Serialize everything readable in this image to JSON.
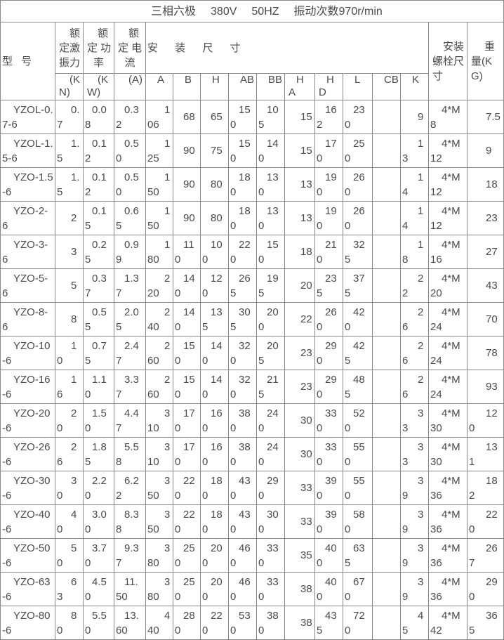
{
  "title": {
    "segments": [
      "三相六极",
      "380V",
      "50HZ",
      "振动次数970r/min"
    ]
  },
  "header": {
    "model_label": "型 号",
    "rated_force": {
      "lines": [
        "额",
        "定激",
        "振力"
      ]
    },
    "rated_power": {
      "lines": [
        "额",
        "定 功",
        "率"
      ]
    },
    "rated_current": {
      "lines": [
        "额",
        "定 电",
        "流"
      ]
    },
    "unit_kn": {
      "lines": [
        "(K",
        "N)"
      ]
    },
    "unit_kw": {
      "lines": [
        "(K",
        "W)"
      ]
    },
    "unit_a": {
      "lines": [
        "(A)"
      ]
    },
    "dims_title": "安 装 尺 寸",
    "dims": {
      "labels": [
        [
          "A"
        ],
        [
          "B"
        ],
        [
          "H"
        ],
        [
          "AB"
        ],
        [
          "BB"
        ],
        [
          "H",
          "A"
        ],
        [
          "H",
          "D"
        ],
        [
          "L"
        ],
        [
          "CB"
        ],
        [
          "K"
        ]
      ]
    },
    "bolt": {
      "lines": [
        "安装",
        "螺栓尺",
        "寸"
      ]
    },
    "weight": {
      "lines": [
        "重",
        "量(K",
        "G)"
      ]
    }
  },
  "rows": [
    {
      "model": "YZOL-0.7-6",
      "kn": "0.7",
      "kw": "0.08",
      "amp": "0.32",
      "a": "106",
      "b": "68",
      "h": "65",
      "ab": "150",
      "bb": "105",
      "ha": "15",
      "hd": "162",
      "l": "230",
      "cb": "",
      "k": "9",
      "bolt": "4*M8",
      "wt": "7.5"
    },
    {
      "model": "YZOL-1.5-6",
      "kn": "1.5",
      "kw": "0.12",
      "amp": "0.50",
      "a": "125",
      "b": "90",
      "h": "75",
      "ab": "150",
      "bb": "140",
      "ha": "15",
      "hd": "170",
      "l": "250",
      "cb": "",
      "k": "13",
      "bolt": "4*M12",
      "wt": "9"
    },
    {
      "model": "YZO-1.5-6",
      "kn": "1.5",
      "kw": "0.12",
      "amp": "0.50",
      "a": "150",
      "b": "90",
      "h": "80",
      "ab": "180",
      "bb": "130",
      "ha": "13",
      "hd": "190",
      "l": "260",
      "cb": "",
      "k": "14",
      "bolt": "4*M12",
      "wt": "18"
    },
    {
      "model": "YZO-2-6",
      "kn": "2",
      "kw": "0.15",
      "amp": "0.65",
      "a": "150",
      "b": "90",
      "h": "80",
      "ab": "180",
      "bb": "130",
      "ha": "13",
      "hd": "190",
      "l": "260",
      "cb": "",
      "k": "14",
      "bolt": "4*M12",
      "wt": "23"
    },
    {
      "model": "YZO-3-6",
      "kn": "3",
      "kw": "0.25",
      "amp": "0.99",
      "a": "180",
      "b": "110",
      "h": "100",
      "ab": "220",
      "bb": "150",
      "ha": "18",
      "hd": "210",
      "l": "325",
      "cb": "",
      "k": "18",
      "bolt": "4*M16",
      "wt": "27"
    },
    {
      "model": "YZO-5-6",
      "kn": "5",
      "kw": "0.37",
      "amp": "1.37",
      "a": "220",
      "b": "140",
      "h": "120",
      "ab": "265",
      "bb": "195",
      "ha": "20",
      "hd": "235",
      "l": "375",
      "cb": "",
      "k": "22",
      "bolt": "4*M20",
      "wt": "43"
    },
    {
      "model": "YZO-8-6",
      "kn": "8",
      "kw": "0.55",
      "amp": "2.05",
      "a": "240",
      "b": "140",
      "h": "135",
      "ab": "305",
      "bb": "200",
      "ha": "22",
      "hd": "260",
      "l": "420",
      "cb": "",
      "k": "26",
      "bolt": "4*M24",
      "wt": "70"
    },
    {
      "model": "YZO-10-6",
      "kn": "10",
      "kw": "0.75",
      "amp": "2.47",
      "a": "260",
      "b": "150",
      "h": "140",
      "ab": "320",
      "bb": "205",
      "ha": "23",
      "hd": "290",
      "l": "425",
      "cb": "",
      "k": "26",
      "bolt": "4*M24",
      "wt": "78"
    },
    {
      "model": "YZO-16-6",
      "kn": "16",
      "kw": "1.10",
      "amp": "3.37",
      "a": "260",
      "b": "150",
      "h": "140",
      "ab": "320",
      "bb": "215",
      "ha": "23",
      "hd": "290",
      "l": "485",
      "cb": "",
      "k": "26",
      "bolt": "4*M24",
      "wt": "93"
    },
    {
      "model": "YZO-20-6",
      "kn": "20",
      "kw": "1.50",
      "amp": "4.47",
      "a": "310",
      "b": "170",
      "h": "160",
      "ab": "380",
      "bb": "240",
      "ha": "30",
      "hd": "330",
      "l": "520",
      "cb": "",
      "k": "33",
      "bolt": "4*M30",
      "wt": "120"
    },
    {
      "model": "YZO-26-6",
      "kn": "26",
      "kw": "1.85",
      "amp": "5.58",
      "a": "310",
      "b": "170",
      "h": "160",
      "ab": "380",
      "bb": "240",
      "ha": "30",
      "hd": "330",
      "l": "550",
      "cb": "",
      "k": "33",
      "bolt": "4*M30",
      "wt": "131"
    },
    {
      "model": "YZO-30-6",
      "kn": "30",
      "kw": "2.20",
      "amp": "6.22",
      "a": "350",
      "b": "220",
      "h": "180",
      "ab": "430",
      "bb": "290",
      "ha": "33",
      "hd": "390",
      "l": "550",
      "cb": "",
      "k": "39",
      "bolt": "4*M36",
      "wt": "182"
    },
    {
      "model": "YZO-40-6",
      "kn": "40",
      "kw": "3.00",
      "amp": "8.38",
      "a": "350",
      "b": "220",
      "h": "180",
      "ab": "430",
      "bb": "300",
      "ha": "33",
      "hd": "390",
      "l": "580",
      "cb": "",
      "k": "39",
      "bolt": "4*M36",
      "wt": "220"
    },
    {
      "model": "YZO-50-6",
      "kn": "50",
      "kw": "3.70",
      "amp": "9.37",
      "a": "380",
      "b": "250",
      "h": "200",
      "ab": "460",
      "bb": "330",
      "ha": "35",
      "hd": "400",
      "l": "635",
      "cb": "",
      "k": "39",
      "bolt": "4*M36",
      "wt": "267"
    },
    {
      "model": "YZO-63-6",
      "kn": "63",
      "kw": "4.50",
      "amp": "11.50",
      "a": "380",
      "b": "250",
      "h": "200",
      "ab": "460",
      "bb": "330",
      "ha": "38",
      "hd": "400",
      "l": "670",
      "cb": "",
      "k": "39",
      "bolt": "4*M36",
      "wt": "290"
    },
    {
      "model": "YZO-80-6",
      "kn": "80",
      "kw": "5.50",
      "amp": "13.60",
      "a": "440",
      "b": "280",
      "h": "220",
      "ab": "530",
      "bb": "380",
      "ha": "38",
      "hd": "435",
      "l": "720",
      "cb": "",
      "k": "45",
      "bolt": "4*M42",
      "wt": "365"
    }
  ],
  "colors": {
    "border": "#888888",
    "text": "#4a4a4a",
    "background": "#ffffff"
  }
}
